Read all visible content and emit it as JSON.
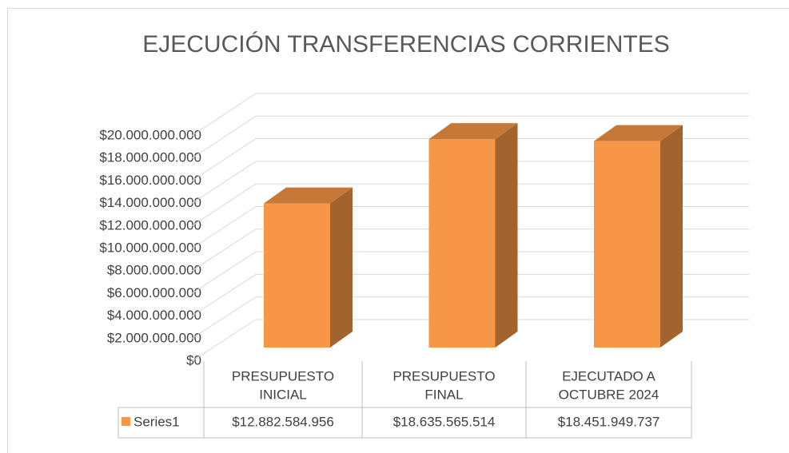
{
  "chart_data": {
    "type": "bar3d",
    "title": "EJECUCIÓN TRANSFERENCIAS CORRIENTES",
    "categories": [
      [
        "PRESUPUESTO",
        "INICIAL"
      ],
      [
        "PRESUPUESTO",
        "FINAL"
      ],
      [
        "EJECUTADO A",
        "OCTUBRE 2024"
      ]
    ],
    "series": [
      {
        "name": "Series1",
        "color": "#f79646",
        "values": [
          12882584956,
          18635565514,
          18451949737
        ],
        "value_labels": [
          "$12.882.584.956",
          "$18.635.565.514",
          "$18.451.949.737"
        ]
      }
    ],
    "ylim": [
      0,
      20000000000
    ],
    "yticks": [
      {
        "value": 0,
        "label": "$0"
      },
      {
        "value": 2000000000,
        "label": "$2.000.000.000"
      },
      {
        "value": 4000000000,
        "label": "$4.000.000.000"
      },
      {
        "value": 6000000000,
        "label": "$6.000.000.000"
      },
      {
        "value": 8000000000,
        "label": "$8.000.000.000"
      },
      {
        "value": 10000000000,
        "label": "$10.000.000.000"
      },
      {
        "value": 12000000000,
        "label": "$12.000.000.000"
      },
      {
        "value": 14000000000,
        "label": "$14.000.000.000"
      },
      {
        "value": 16000000000,
        "label": "$16.000.000.000"
      },
      {
        "value": 18000000000,
        "label": "$18.000.000.000"
      },
      {
        "value": 20000000000,
        "label": "$20.000.000.000"
      }
    ],
    "grid": true,
    "data_table": true
  }
}
